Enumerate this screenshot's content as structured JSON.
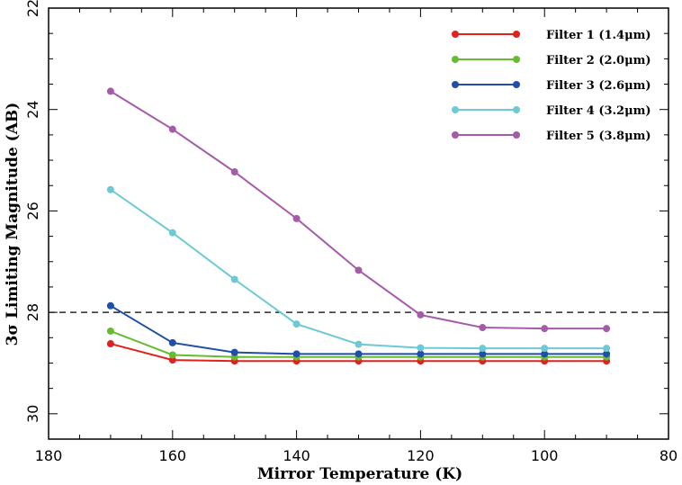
{
  "chart_data": {
    "type": "line",
    "xlabel": "Mirror Temperature (K)",
    "ylabel": "3σ Limiting Magnitude (AB)",
    "xlim": [
      180,
      80
    ],
    "ylim": [
      22,
      30.5
    ],
    "y_inverted": true,
    "xticks": [
      180,
      160,
      140,
      120,
      100,
      80
    ],
    "yticks": [
      22,
      24,
      26,
      28,
      30
    ],
    "reference_line": {
      "y": 28,
      "style": "dashed"
    },
    "x": [
      170,
      160,
      150,
      140,
      130,
      120,
      110,
      100,
      90
    ],
    "legend_position": "top-right",
    "series": [
      {
        "name": "Filter 1 (1.4μm)",
        "color": "#e0221f",
        "values": [
          28.62,
          28.94,
          28.96,
          28.96,
          28.96,
          28.96,
          28.96,
          28.96,
          28.96
        ]
      },
      {
        "name": "Filter 2 (2.0μm)",
        "color": "#66bb2f",
        "values": [
          28.37,
          28.84,
          28.88,
          28.88,
          28.88,
          28.88,
          28.88,
          28.88,
          28.88
        ]
      },
      {
        "name": "Filter 3 (2.6μm)",
        "color": "#1f4fa6",
        "values": [
          27.87,
          28.6,
          28.79,
          28.82,
          28.82,
          28.82,
          28.82,
          28.82,
          28.82
        ]
      },
      {
        "name": "Filter 4 (3.2μm)",
        "color": "#6ccad4",
        "values": [
          25.58,
          26.43,
          27.35,
          28.23,
          28.63,
          28.7,
          28.71,
          28.71,
          28.71
        ]
      },
      {
        "name": "Filter 5 (3.8μm)",
        "color": "#a45ba8",
        "values": [
          23.64,
          24.39,
          25.23,
          26.15,
          27.17,
          28.05,
          28.3,
          28.32,
          28.32
        ]
      }
    ]
  }
}
